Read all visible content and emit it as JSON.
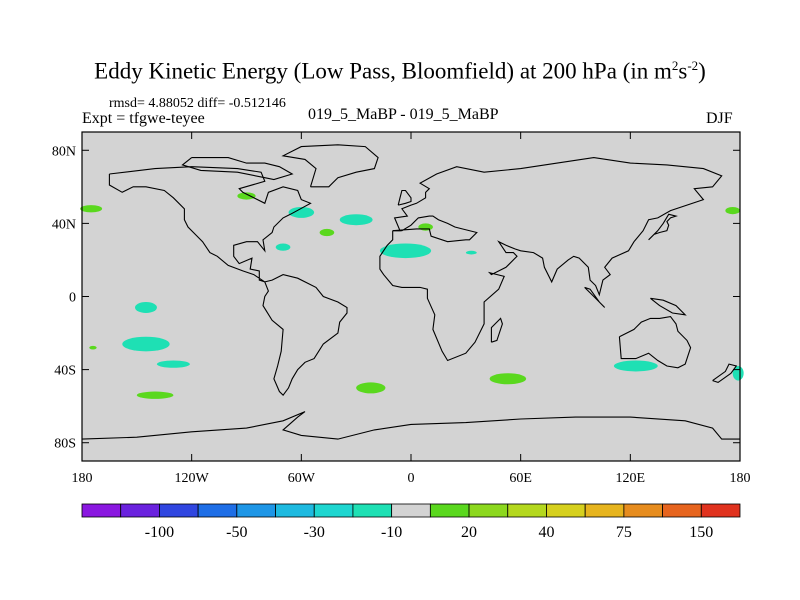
{
  "title": {
    "main": "Eddy Kinetic Energy (Low Pass, Bloomfield) at 200 hPa (in m",
    "sup1": "2",
    "s": "s",
    "sup2": "-2",
    "close": ")"
  },
  "stats": "rmsd= 4.88052 diff= -0.512146",
  "left_label": "Expt = tfgwe-teyee",
  "center_label": "019_5_MaBP - 019_5_MaBP",
  "right_label": "DJF",
  "map": {
    "lon_range": [
      -180,
      180
    ],
    "lat_range": [
      -90,
      90
    ],
    "x_ticks": [
      {
        "lon": -180,
        "label": "180"
      },
      {
        "lon": -120,
        "label": "120W"
      },
      {
        "lon": -60,
        "label": "60W"
      },
      {
        "lon": 0,
        "label": "0"
      },
      {
        "lon": 60,
        "label": "60E"
      },
      {
        "lon": 120,
        "label": "120E"
      },
      {
        "lon": 180,
        "label": "180"
      }
    ],
    "y_ticks": [
      {
        "lat": 80,
        "label": "80N"
      },
      {
        "lat": 40,
        "label": "40N"
      },
      {
        "lat": 0,
        "label": "0"
      },
      {
        "lat": -40,
        "label": "40S"
      },
      {
        "lat": -80,
        "label": "80S"
      }
    ],
    "background_color": "#d3d3d3"
  },
  "colorbar": {
    "colors": [
      "#8a17e0",
      "#6a22de",
      "#3046e0",
      "#1e6ee6",
      "#1e96e6",
      "#1ebae0",
      "#1ed6d0",
      "#1ee0b4",
      "#d3d3d3",
      "#5ad81e",
      "#8cd81e",
      "#b4d81e",
      "#d6d01e",
      "#e6b41e",
      "#e68c1e",
      "#e6641e",
      "#e0321e"
    ],
    "labels": [
      "-100",
      "-50",
      "-30",
      "-10",
      "20",
      "40",
      "75",
      "150"
    ]
  },
  "anomalies": [
    {
      "name": "anomaly-blob",
      "lon": -90,
      "lat": 55,
      "rx": 5,
      "ry": 2,
      "color": "#5ad81e"
    },
    {
      "name": "anomaly-blob",
      "lon": -175,
      "lat": 48,
      "rx": 6,
      "ry": 2,
      "color": "#5ad81e"
    },
    {
      "name": "anomaly-blob",
      "lon": -60,
      "lat": 46,
      "rx": 7,
      "ry": 3,
      "color": "#1ee0b4"
    },
    {
      "name": "anomaly-blob",
      "lon": -30,
      "lat": 42,
      "rx": 9,
      "ry": 3,
      "color": "#1ee0b4"
    },
    {
      "name": "anomaly-blob",
      "lon": -46,
      "lat": 35,
      "rx": 4,
      "ry": 2,
      "color": "#5ad81e"
    },
    {
      "name": "anomaly-blob",
      "lon": 8,
      "lat": 38,
      "rx": 4,
      "ry": 2,
      "color": "#5ad81e"
    },
    {
      "name": "anomaly-blob",
      "lon": -3,
      "lat": 25,
      "rx": 14,
      "ry": 4,
      "color": "#1ee0b4"
    },
    {
      "name": "anomaly-blob",
      "lon": -70,
      "lat": 27,
      "rx": 4,
      "ry": 2,
      "color": "#1ee0b4"
    },
    {
      "name": "anomaly-blob",
      "lon": 33,
      "lat": 24,
      "rx": 3,
      "ry": 1,
      "color": "#1ee0b4"
    },
    {
      "name": "anomaly-blob",
      "lon": -145,
      "lat": -6,
      "rx": 6,
      "ry": 3,
      "color": "#1ee0b4"
    },
    {
      "name": "anomaly-blob",
      "lon": -145,
      "lat": -26,
      "rx": 13,
      "ry": 4,
      "color": "#1ee0b4"
    },
    {
      "name": "anomaly-blob",
      "lon": -130,
      "lat": -37,
      "rx": 9,
      "ry": 2,
      "color": "#1ee0b4"
    },
    {
      "name": "anomaly-blob",
      "lon": -140,
      "lat": -54,
      "rx": 10,
      "ry": 2,
      "color": "#5ad81e"
    },
    {
      "name": "anomaly-blob",
      "lon": -22,
      "lat": -50,
      "rx": 8,
      "ry": 3,
      "color": "#5ad81e"
    },
    {
      "name": "anomaly-blob",
      "lon": 53,
      "lat": -45,
      "rx": 10,
      "ry": 3,
      "color": "#5ad81e"
    },
    {
      "name": "anomaly-blob",
      "lon": 123,
      "lat": -38,
      "rx": 12,
      "ry": 3,
      "color": "#1ee0b4"
    },
    {
      "name": "anomaly-blob",
      "lon": 179,
      "lat": -42,
      "rx": 3,
      "ry": 4,
      "color": "#1ee0b4"
    },
    {
      "name": "anomaly-blob",
      "lon": 176,
      "lat": 47,
      "rx": 4,
      "ry": 2,
      "color": "#5ad81e"
    },
    {
      "name": "anomaly-blob",
      "lon": -174,
      "lat": -28,
      "rx": 2,
      "ry": 1,
      "color": "#5ad81e"
    }
  ],
  "coastlines": [
    [
      [
        -165,
        67
      ],
      [
        -140,
        70
      ],
      [
        -120,
        71
      ],
      [
        -95,
        70
      ],
      [
        -82,
        68
      ],
      [
        -80,
        63
      ],
      [
        -94,
        59
      ],
      [
        -92,
        57
      ],
      [
        -80,
        51
      ],
      [
        -78,
        57
      ],
      [
        -70,
        60
      ],
      [
        -62,
        58
      ],
      [
        -60,
        53
      ],
      [
        -55,
        51
      ],
      [
        -66,
        45
      ],
      [
        -70,
        43
      ],
      [
        -75,
        38
      ],
      [
        -76,
        35
      ],
      [
        -81,
        31
      ],
      [
        -80,
        25
      ],
      [
        -84,
        30
      ],
      [
        -90,
        30
      ],
      [
        -97,
        28
      ],
      [
        -97,
        22
      ],
      [
        -94,
        18
      ],
      [
        -87,
        21
      ],
      [
        -88,
        15
      ],
      [
        -83,
        14
      ],
      [
        -83,
        9
      ],
      [
        -80,
        8
      ],
      [
        -86,
        12
      ],
      [
        -92,
        14
      ],
      [
        -100,
        17
      ],
      [
        -106,
        22
      ],
      [
        -110,
        24
      ],
      [
        -114,
        30
      ],
      [
        -118,
        34
      ],
      [
        -122,
        38
      ],
      [
        -124,
        42
      ],
      [
        -124,
        48
      ],
      [
        -130,
        54
      ],
      [
        -135,
        58
      ],
      [
        -145,
        60
      ],
      [
        -152,
        60
      ],
      [
        -158,
        57
      ],
      [
        -165,
        61
      ],
      [
        -165,
        67
      ]
    ],
    [
      [
        -80,
        8
      ],
      [
        -76,
        9
      ],
      [
        -70,
        12
      ],
      [
        -62,
        10
      ],
      [
        -52,
        5
      ],
      [
        -48,
        0
      ],
      [
        -40,
        -3
      ],
      [
        -35,
        -6
      ],
      [
        -35,
        -9
      ],
      [
        -39,
        -14
      ],
      [
        -40,
        -20
      ],
      [
        -48,
        -26
      ],
      [
        -53,
        -34
      ],
      [
        -58,
        -36
      ],
      [
        -62,
        -40
      ],
      [
        -65,
        -45
      ],
      [
        -67,
        -50
      ],
      [
        -70,
        -54
      ],
      [
        -72,
        -52
      ],
      [
        -75,
        -45
      ],
      [
        -73,
        -38
      ],
      [
        -71,
        -30
      ],
      [
        -70,
        -18
      ],
      [
        -76,
        -13
      ],
      [
        -81,
        -5
      ],
      [
        -80,
        0
      ],
      [
        -78,
        3
      ],
      [
        -80,
        8
      ]
    ],
    [
      [
        -10,
        36
      ],
      [
        -6,
        36
      ],
      [
        -9,
        43
      ],
      [
        -2,
        44
      ],
      [
        -5,
        48
      ],
      [
        0,
        50
      ],
      [
        3,
        51
      ],
      [
        8,
        54
      ],
      [
        8,
        57
      ],
      [
        10,
        59
      ],
      [
        5,
        62
      ],
      [
        14,
        67
      ],
      [
        25,
        71
      ],
      [
        40,
        68
      ],
      [
        60,
        70
      ],
      [
        80,
        73
      ],
      [
        100,
        76
      ],
      [
        120,
        73
      ],
      [
        140,
        72
      ],
      [
        160,
        70
      ],
      [
        170,
        66
      ],
      [
        165,
        60
      ],
      [
        155,
        59
      ],
      [
        160,
        53
      ],
      [
        142,
        47
      ],
      [
        135,
        43
      ],
      [
        130,
        42
      ],
      [
        127,
        36
      ],
      [
        122,
        30
      ],
      [
        119,
        25
      ],
      [
        110,
        21
      ],
      [
        106,
        16
      ],
      [
        109,
        12
      ],
      [
        105,
        9
      ],
      [
        103,
        1
      ],
      [
        101,
        6
      ],
      [
        98,
        9
      ],
      [
        97,
        16
      ],
      [
        92,
        21
      ],
      [
        89,
        22
      ],
      [
        86,
        20
      ],
      [
        80,
        15
      ],
      [
        77,
        8
      ],
      [
        73,
        16
      ],
      [
        72,
        21
      ],
      [
        67,
        24
      ],
      [
        60,
        25
      ],
      [
        57,
        26
      ],
      [
        52,
        28
      ],
      [
        48,
        30
      ],
      [
        52,
        24
      ],
      [
        56,
        24
      ],
      [
        58,
        22
      ],
      [
        52,
        16
      ],
      [
        44,
        12
      ],
      [
        43,
        13
      ],
      [
        51,
        11
      ],
      [
        48,
        4
      ],
      [
        40,
        -3
      ],
      [
        40,
        -15
      ],
      [
        35,
        -25
      ],
      [
        30,
        -31
      ],
      [
        20,
        -35
      ],
      [
        17,
        -30
      ],
      [
        12,
        -18
      ],
      [
        13,
        -10
      ],
      [
        9,
        -1
      ],
      [
        9,
        4
      ],
      [
        5,
        5
      ],
      [
        -5,
        5
      ],
      [
        -10,
        6
      ],
      [
        -15,
        12
      ],
      [
        -17,
        15
      ],
      [
        -17,
        22
      ],
      [
        -13,
        28
      ],
      [
        -10,
        31
      ],
      [
        -10,
        36
      ]
    ],
    [
      [
        -10,
        36
      ],
      [
        3,
        37
      ],
      [
        10,
        37
      ],
      [
        11,
        33
      ],
      [
        20,
        30
      ],
      [
        30,
        31
      ],
      [
        32,
        31
      ],
      [
        36,
        35
      ],
      [
        28,
        37
      ],
      [
        24,
        38
      ],
      [
        20,
        40
      ],
      [
        15,
        42
      ],
      [
        12,
        44
      ],
      [
        10,
        44
      ],
      [
        4,
        43
      ],
      [
        0,
        39
      ],
      [
        -5,
        36
      ],
      [
        -10,
        36
      ]
    ],
    [
      [
        114,
        -22
      ],
      [
        115,
        -34
      ],
      [
        123,
        -34
      ],
      [
        130,
        -31
      ],
      [
        135,
        -35
      ],
      [
        140,
        -38
      ],
      [
        146,
        -39
      ],
      [
        150,
        -37
      ],
      [
        153,
        -28
      ],
      [
        151,
        -24
      ],
      [
        146,
        -19
      ],
      [
        145,
        -15
      ],
      [
        142,
        -11
      ],
      [
        136,
        -12
      ],
      [
        131,
        -12
      ],
      [
        126,
        -14
      ],
      [
        122,
        -18
      ],
      [
        114,
        -22
      ]
    ],
    [
      [
        -55,
        60
      ],
      [
        -45,
        60
      ],
      [
        -40,
        65
      ],
      [
        -30,
        68
      ],
      [
        -20,
        70
      ],
      [
        -18,
        76
      ],
      [
        -25,
        82
      ],
      [
        -40,
        83
      ],
      [
        -60,
        82
      ],
      [
        -70,
        77
      ],
      [
        -58,
        75
      ],
      [
        -52,
        70
      ],
      [
        -55,
        60
      ]
    ],
    [
      [
        -180,
        -78
      ],
      [
        -150,
        -77
      ],
      [
        -120,
        -74
      ],
      [
        -90,
        -72
      ],
      [
        -70,
        -68
      ],
      [
        -58,
        -63
      ],
      [
        -62,
        -66
      ],
      [
        -70,
        -73
      ],
      [
        -60,
        -76
      ],
      [
        -40,
        -78
      ],
      [
        -20,
        -73
      ],
      [
        0,
        -70
      ],
      [
        30,
        -69
      ],
      [
        60,
        -67
      ],
      [
        90,
        -66
      ],
      [
        120,
        -66
      ],
      [
        150,
        -68
      ],
      [
        165,
        -72
      ],
      [
        170,
        -78
      ],
      [
        180,
        -78
      ]
    ],
    [
      [
        -120,
        76
      ],
      [
        -100,
        76
      ],
      [
        -90,
        73
      ],
      [
        -80,
        73
      ],
      [
        -72,
        71
      ],
      [
        -65,
        67
      ],
      [
        -75,
        64
      ],
      [
        -80,
        65
      ],
      [
        -95,
        68
      ],
      [
        -115,
        69
      ],
      [
        -125,
        72
      ],
      [
        -120,
        76
      ]
    ],
    [
      [
        -7,
        50
      ],
      [
        -3,
        51
      ],
      [
        0,
        52
      ],
      [
        0,
        54
      ],
      [
        -3,
        58
      ],
      [
        -5,
        58
      ],
      [
        -6,
        54
      ],
      [
        -7,
        50
      ]
    ],
    [
      [
        130,
        31
      ],
      [
        133,
        34
      ],
      [
        136,
        35
      ],
      [
        140,
        36
      ],
      [
        141,
        39
      ],
      [
        140,
        41
      ],
      [
        142,
        43
      ],
      [
        145,
        44
      ],
      [
        141,
        45
      ],
      [
        138,
        40
      ],
      [
        135,
        36
      ],
      [
        130,
        31
      ]
    ],
    [
      [
        95,
        5
      ],
      [
        98,
        4
      ],
      [
        103,
        -3
      ],
      [
        106,
        -6
      ],
      [
        105,
        -5
      ],
      [
        100,
        0
      ],
      [
        95,
        5
      ]
    ],
    [
      [
        131,
        -1
      ],
      [
        138,
        -2
      ],
      [
        145,
        -5
      ],
      [
        150,
        -10
      ],
      [
        143,
        -9
      ],
      [
        136,
        -5
      ],
      [
        131,
        -1
      ]
    ],
    [
      [
        44,
        -25
      ],
      [
        47,
        -24
      ],
      [
        50,
        -15
      ],
      [
        49,
        -12
      ],
      [
        44,
        -17
      ],
      [
        44,
        -25
      ]
    ],
    [
      [
        165,
        -46
      ],
      [
        172,
        -41
      ],
      [
        174,
        -37
      ],
      [
        178,
        -38
      ],
      [
        175,
        -42
      ],
      [
        168,
        -47
      ],
      [
        165,
        -46
      ]
    ]
  ]
}
